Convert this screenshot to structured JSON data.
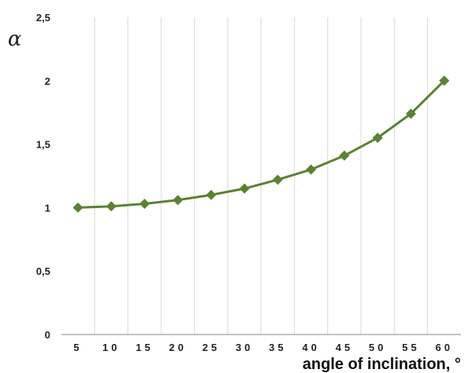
{
  "chart_data": {
    "type": "line",
    "title": "",
    "xlabel": "angle of inclination, °",
    "ylabel": "α",
    "categories": [
      "5",
      "10",
      "15",
      "20",
      "25",
      "30",
      "35",
      "40",
      "45",
      "50",
      "55",
      "60"
    ],
    "y_tick_labels": [
      "0",
      "0,5",
      "1",
      "1,5",
      "2",
      "2,5"
    ],
    "y_ticks": [
      0,
      0.5,
      1,
      1.5,
      2,
      2.5
    ],
    "ylim": [
      0,
      2.5
    ],
    "grid": "vertical",
    "legend": "none",
    "series": [
      {
        "values": [
          1.0,
          1.01,
          1.03,
          1.06,
          1.1,
          1.15,
          1.22,
          1.3,
          1.41,
          1.55,
          1.74,
          2.0
        ],
        "color": "#5a8232",
        "marker": "diamond"
      }
    ]
  }
}
